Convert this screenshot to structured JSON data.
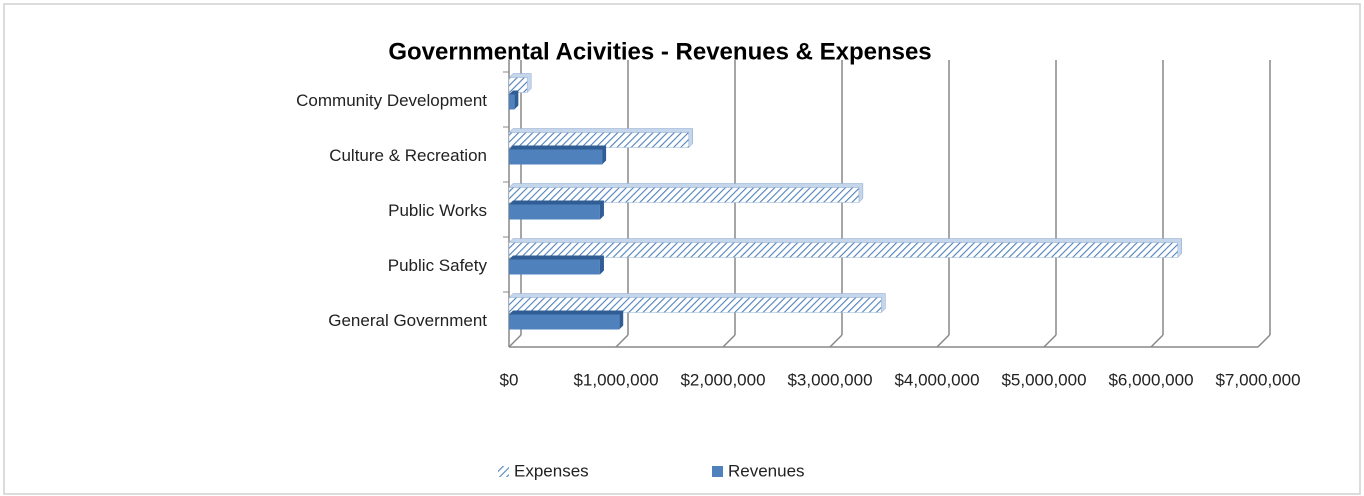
{
  "chart_data": {
    "type": "bar",
    "orientation": "horizontal",
    "title": "Governmental Acivities - Revenues &  Expenses",
    "categories": [
      "Community Development",
      "Culture & Recreation",
      "Public Works",
      "Public Safety",
      "General Government"
    ],
    "series": [
      {
        "name": "Expenses",
        "color": "#4f81bd",
        "pattern": "hatch",
        "values": [
          170000,
          1680000,
          3270000,
          6250000,
          3480000
        ]
      },
      {
        "name": "Revenues",
        "color": "#4f81bd",
        "values": [
          50000,
          870000,
          850000,
          850000,
          1030000
        ]
      }
    ],
    "xlim": [
      0,
      7000000
    ],
    "xticks": [
      {
        "value": 0,
        "label": "$0"
      },
      {
        "value": 1000000,
        "label": "$1,000,000"
      },
      {
        "value": 2000000,
        "label": "$2,000,000"
      },
      {
        "value": 3000000,
        "label": "$3,000,000"
      },
      {
        "value": 4000000,
        "label": "$4,000,000"
      },
      {
        "value": 5000000,
        "label": "$5,000,000"
      },
      {
        "value": 6000000,
        "label": "$6,000,000"
      },
      {
        "value": 7000000,
        "label": "$7,000,000"
      }
    ],
    "grid": true,
    "legend": "bottom"
  }
}
